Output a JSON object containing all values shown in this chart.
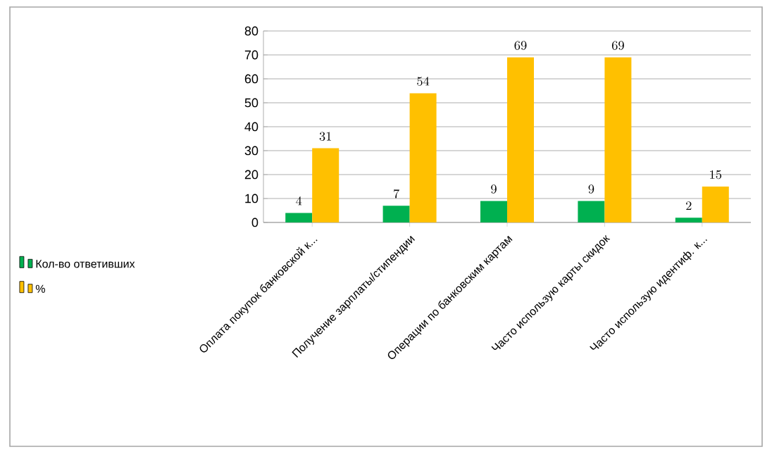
{
  "chart_data": {
    "type": "bar",
    "categories": [
      "Оплата покупок банковской к...",
      "Получение зарплаты/стипендии",
      "Операции по банковским картам",
      "Часто использую карты скидок",
      "Часто использую идентиф. к..."
    ],
    "series": [
      {
        "name": "Кол-во ответивших",
        "color": "#00b050",
        "values": [
          4,
          7,
          9,
          9,
          2
        ]
      },
      {
        "name": "%",
        "color": "#ffc000",
        "values": [
          31,
          54,
          69,
          69,
          15
        ]
      }
    ],
    "ylim": [
      0,
      80
    ],
    "yticks": [
      0,
      10,
      20,
      30,
      40,
      50,
      60,
      70,
      80
    ],
    "grid": "y",
    "legend": "left",
    "data_labels": true
  }
}
